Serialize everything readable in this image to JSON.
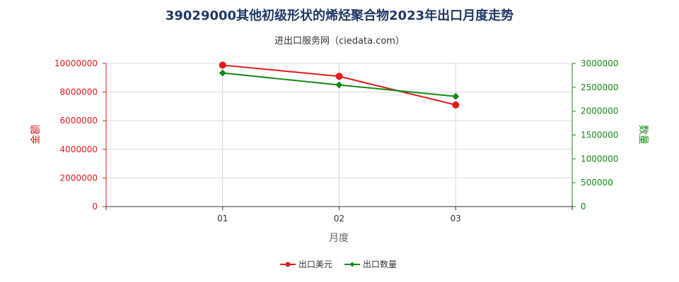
{
  "chart_data": {
    "type": "line",
    "title": "39029000其他初级形状的烯烃聚合物2023年出口月度走势",
    "subtitle": "进出口服务网（ciedata.com）",
    "xlabel": "月度",
    "ylabel_left": "金额",
    "ylabel_right": "数量",
    "categories": [
      "01",
      "02",
      "03"
    ],
    "ylim_left": [
      0,
      10000000
    ],
    "ylim_right": [
      0,
      3000000
    ],
    "yticks_left": [
      "0",
      "2000000",
      "4000000",
      "6000000",
      "8000000",
      "10000000"
    ],
    "yticks_right": [
      "0",
      "500000",
      "1000000",
      "1500000",
      "2000000",
      "2500000",
      "3000000"
    ],
    "grid": true,
    "legend_position": "bottom",
    "series": [
      {
        "name": "出口美元",
        "axis": "left",
        "color": "#e31a1c",
        "values": [
          9880000,
          9100000,
          7100000
        ]
      },
      {
        "name": "出口数量",
        "axis": "right",
        "color": "#138a13",
        "values": [
          2800000,
          2550000,
          2310000
        ]
      }
    ]
  }
}
